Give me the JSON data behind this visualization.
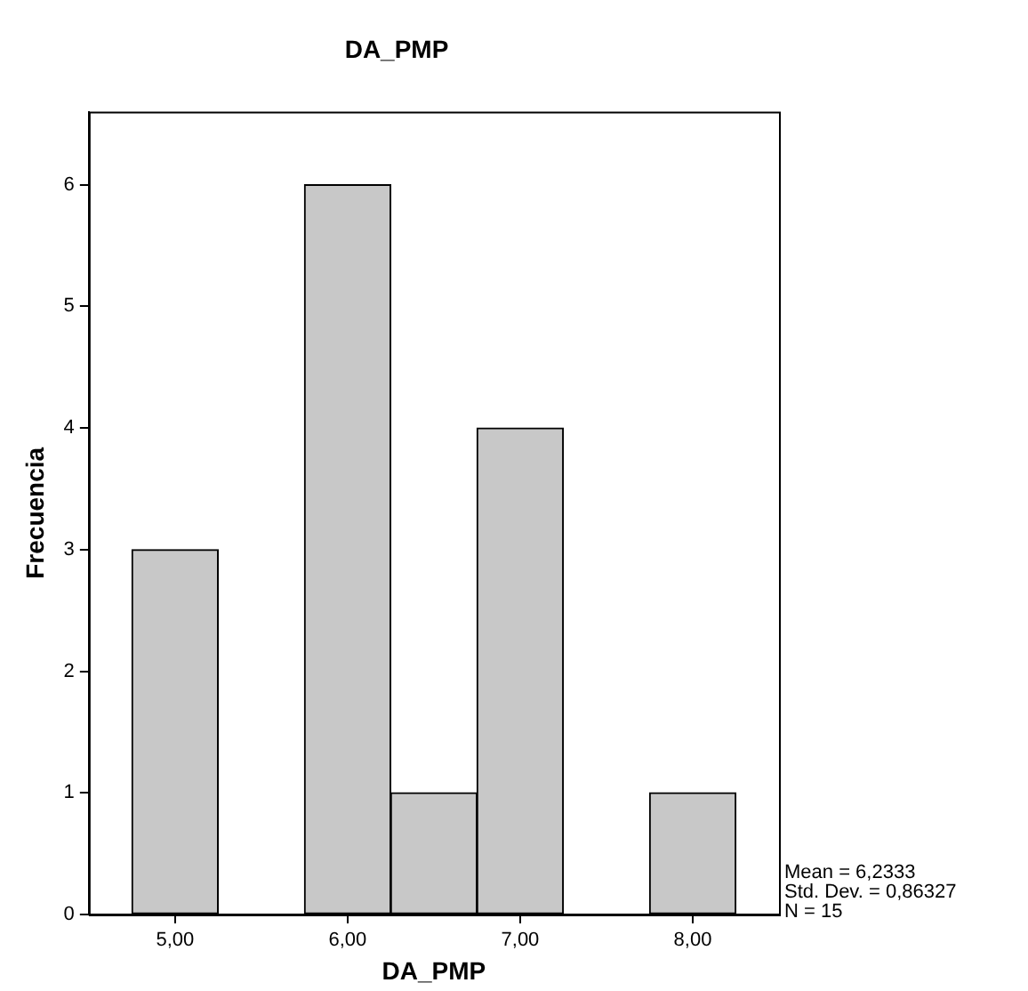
{
  "chart_data": {
    "type": "histogram",
    "title": "DA_PMP",
    "xlabel": "DA_PMP",
    "ylabel": "Frecuencia",
    "bins": [
      4.75,
      5.25,
      5.75,
      6.25,
      6.75,
      7.25,
      7.75,
      8.25
    ],
    "values": [
      3,
      0,
      6,
      1,
      4,
      0,
      1
    ],
    "color": "#c8c8c8",
    "xlim": [
      4.5,
      8.5
    ],
    "ylim": [
      0,
      6.6
    ],
    "xticks": [
      {
        "value": 5,
        "label": "5,00"
      },
      {
        "value": 6,
        "label": "6,00"
      },
      {
        "value": 7,
        "label": "7,00"
      },
      {
        "value": 8,
        "label": "8,00"
      }
    ],
    "yticks": [
      0,
      1,
      2,
      3,
      4,
      5,
      6
    ],
    "grid": false,
    "legend": false,
    "annotations": [
      "Mean = 6,2333",
      "Std. Dev. = 0,86327",
      "N = 15"
    ]
  }
}
